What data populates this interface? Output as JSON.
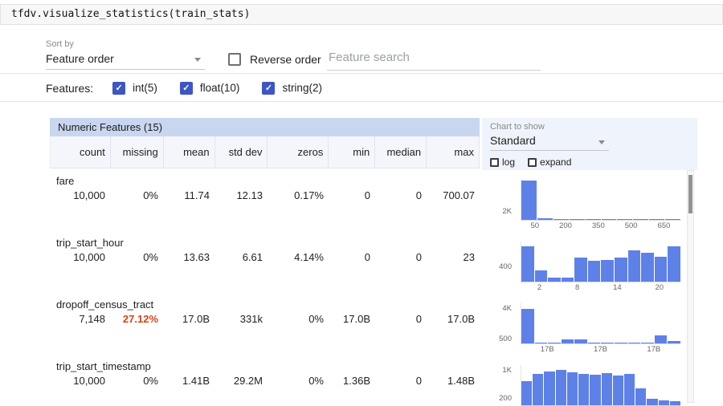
{
  "code_cell": {
    "text": "tfdv.visualize_statistics(train_stats)"
  },
  "controls": {
    "sort_by_label": "Sort by",
    "sort_by_value": "Feature order",
    "reverse_order_label": "Reverse order",
    "search_placeholder": "Feature search",
    "features_label": "Features:",
    "feature_types": [
      {
        "label": "int(5)",
        "checked": true
      },
      {
        "label": "float(10)",
        "checked": true
      },
      {
        "label": "string(2)",
        "checked": true
      }
    ]
  },
  "table": {
    "title": "Numeric Features (15)",
    "columns": [
      "count",
      "missing",
      "mean",
      "std dev",
      "zeros",
      "min",
      "median",
      "max"
    ],
    "rows": [
      {
        "name": "fare",
        "values": [
          "10,000",
          "0%",
          "11.74",
          "12.13",
          "0.17%",
          "0",
          "0",
          "700.07"
        ]
      },
      {
        "name": "trip_start_hour",
        "values": [
          "10,000",
          "0%",
          "13.63",
          "6.61",
          "4.14%",
          "0",
          "0",
          "23"
        ]
      },
      {
        "name": "dropoff_census_tract",
        "values": [
          "7,148",
          "27.12%",
          "17.0B",
          "331k",
          "0%",
          "17.0B",
          "0",
          "17.0B"
        ],
        "missing_alert": true
      },
      {
        "name": "trip_start_timestamp",
        "values": [
          "10,000",
          "0%",
          "1.41B",
          "29.2M",
          "0%",
          "1.36B",
          "0",
          "1.48B"
        ]
      }
    ]
  },
  "chart_panel": {
    "header_label": "Chart to show",
    "selected_chart": "Standard",
    "log_label": "log",
    "expand_label": "expand"
  },
  "chart_data": [
    {
      "type": "histogram",
      "feature": "fare",
      "ymax": 9000,
      "y_ticks": [
        {
          "label": "2K",
          "value": 2000
        }
      ],
      "x_ticks": [
        "50",
        "200",
        "350",
        "500",
        "650"
      ],
      "values": [
        8800,
        450,
        250,
        130,
        80,
        60,
        45,
        35,
        25,
        20
      ]
    },
    {
      "type": "histogram",
      "feature": "trip_start_hour",
      "ymax": 1050,
      "y_ticks": [
        {
          "label": "400",
          "value": 400
        }
      ],
      "x_ticks": [
        "2",
        "8",
        "14",
        "20"
      ],
      "values": [
        930,
        290,
        110,
        100,
        630,
        560,
        570,
        630,
        830,
        760,
        660,
        930
      ]
    },
    {
      "type": "histogram",
      "feature": "dropoff_census_tract",
      "ymax": 4600,
      "y_ticks": [
        {
          "label": "4K",
          "value": 4000
        },
        {
          "label": "500",
          "value": 500
        }
      ],
      "x_ticks": [
        "17B",
        "17B",
        "17B"
      ],
      "values": [
        4000,
        60,
        45,
        480,
        520,
        90,
        55,
        45,
        35,
        30,
        900,
        260
      ]
    },
    {
      "type": "histogram",
      "feature": "trip_start_timestamp",
      "ymax": 1150,
      "y_ticks": [
        {
          "label": "1K",
          "value": 1000
        },
        {
          "label": "200",
          "value": 200
        }
      ],
      "x_ticks": [],
      "values": [
        700,
        900,
        980,
        1020,
        950,
        900,
        880,
        920,
        860,
        900,
        500,
        200,
        150,
        120
      ]
    }
  ],
  "colors": {
    "accent_blue": "#3d56c4",
    "histogram_bar": "#5e81e8",
    "table_header_bg": "#c9d6f0",
    "missing_alert": "#d84315"
  }
}
